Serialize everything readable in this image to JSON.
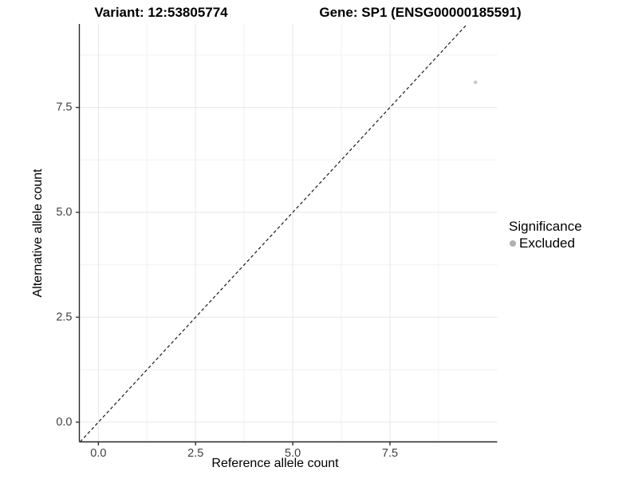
{
  "page": {
    "background": "#ffffff"
  },
  "chart_data": {
    "type": "scatter",
    "title_variant": "Variant: 12:53805774",
    "title_gene": "Gene: SP1 (ENSG00000185591)",
    "xlabel": "Reference allele count",
    "ylabel": "Alternative allele count",
    "xlim": [
      -0.49,
      10.26
    ],
    "ylim": [
      -0.47,
      9.49
    ],
    "xticks": {
      "values": [
        0,
        2.5,
        5,
        7.5
      ],
      "labels": [
        "0.0",
        "2.5",
        "5.0",
        "7.5"
      ]
    },
    "yticks": {
      "values": [
        0,
        2.5,
        5,
        7.5
      ],
      "labels": [
        "0.0",
        "2.5",
        "5.0",
        "7.5"
      ]
    },
    "minor_xticks": [
      1.25,
      3.75,
      6.25,
      8.75
    ],
    "minor_yticks": [
      1.25,
      3.75,
      6.25,
      8.75
    ],
    "grid": {
      "on": true,
      "major_color": "#e7e7e7",
      "minor_color": "#f2f2f2"
    },
    "axis_color": "#262626",
    "tick_color": "#333333",
    "tick_label_color": "#404040",
    "identity_line": {
      "style": "dashed",
      "slope": 1,
      "intercept": 0,
      "color": "#1a1a1a"
    },
    "points": [
      {
        "x": 9.7,
        "y": 8.1,
        "significance": "Excluded",
        "color": "#c6c6c6",
        "radius": 2.2
      }
    ],
    "legend": {
      "title": "Significance",
      "position": "right",
      "entries": [
        {
          "label": "Excluded",
          "color": "#b0b0b0"
        }
      ]
    }
  }
}
